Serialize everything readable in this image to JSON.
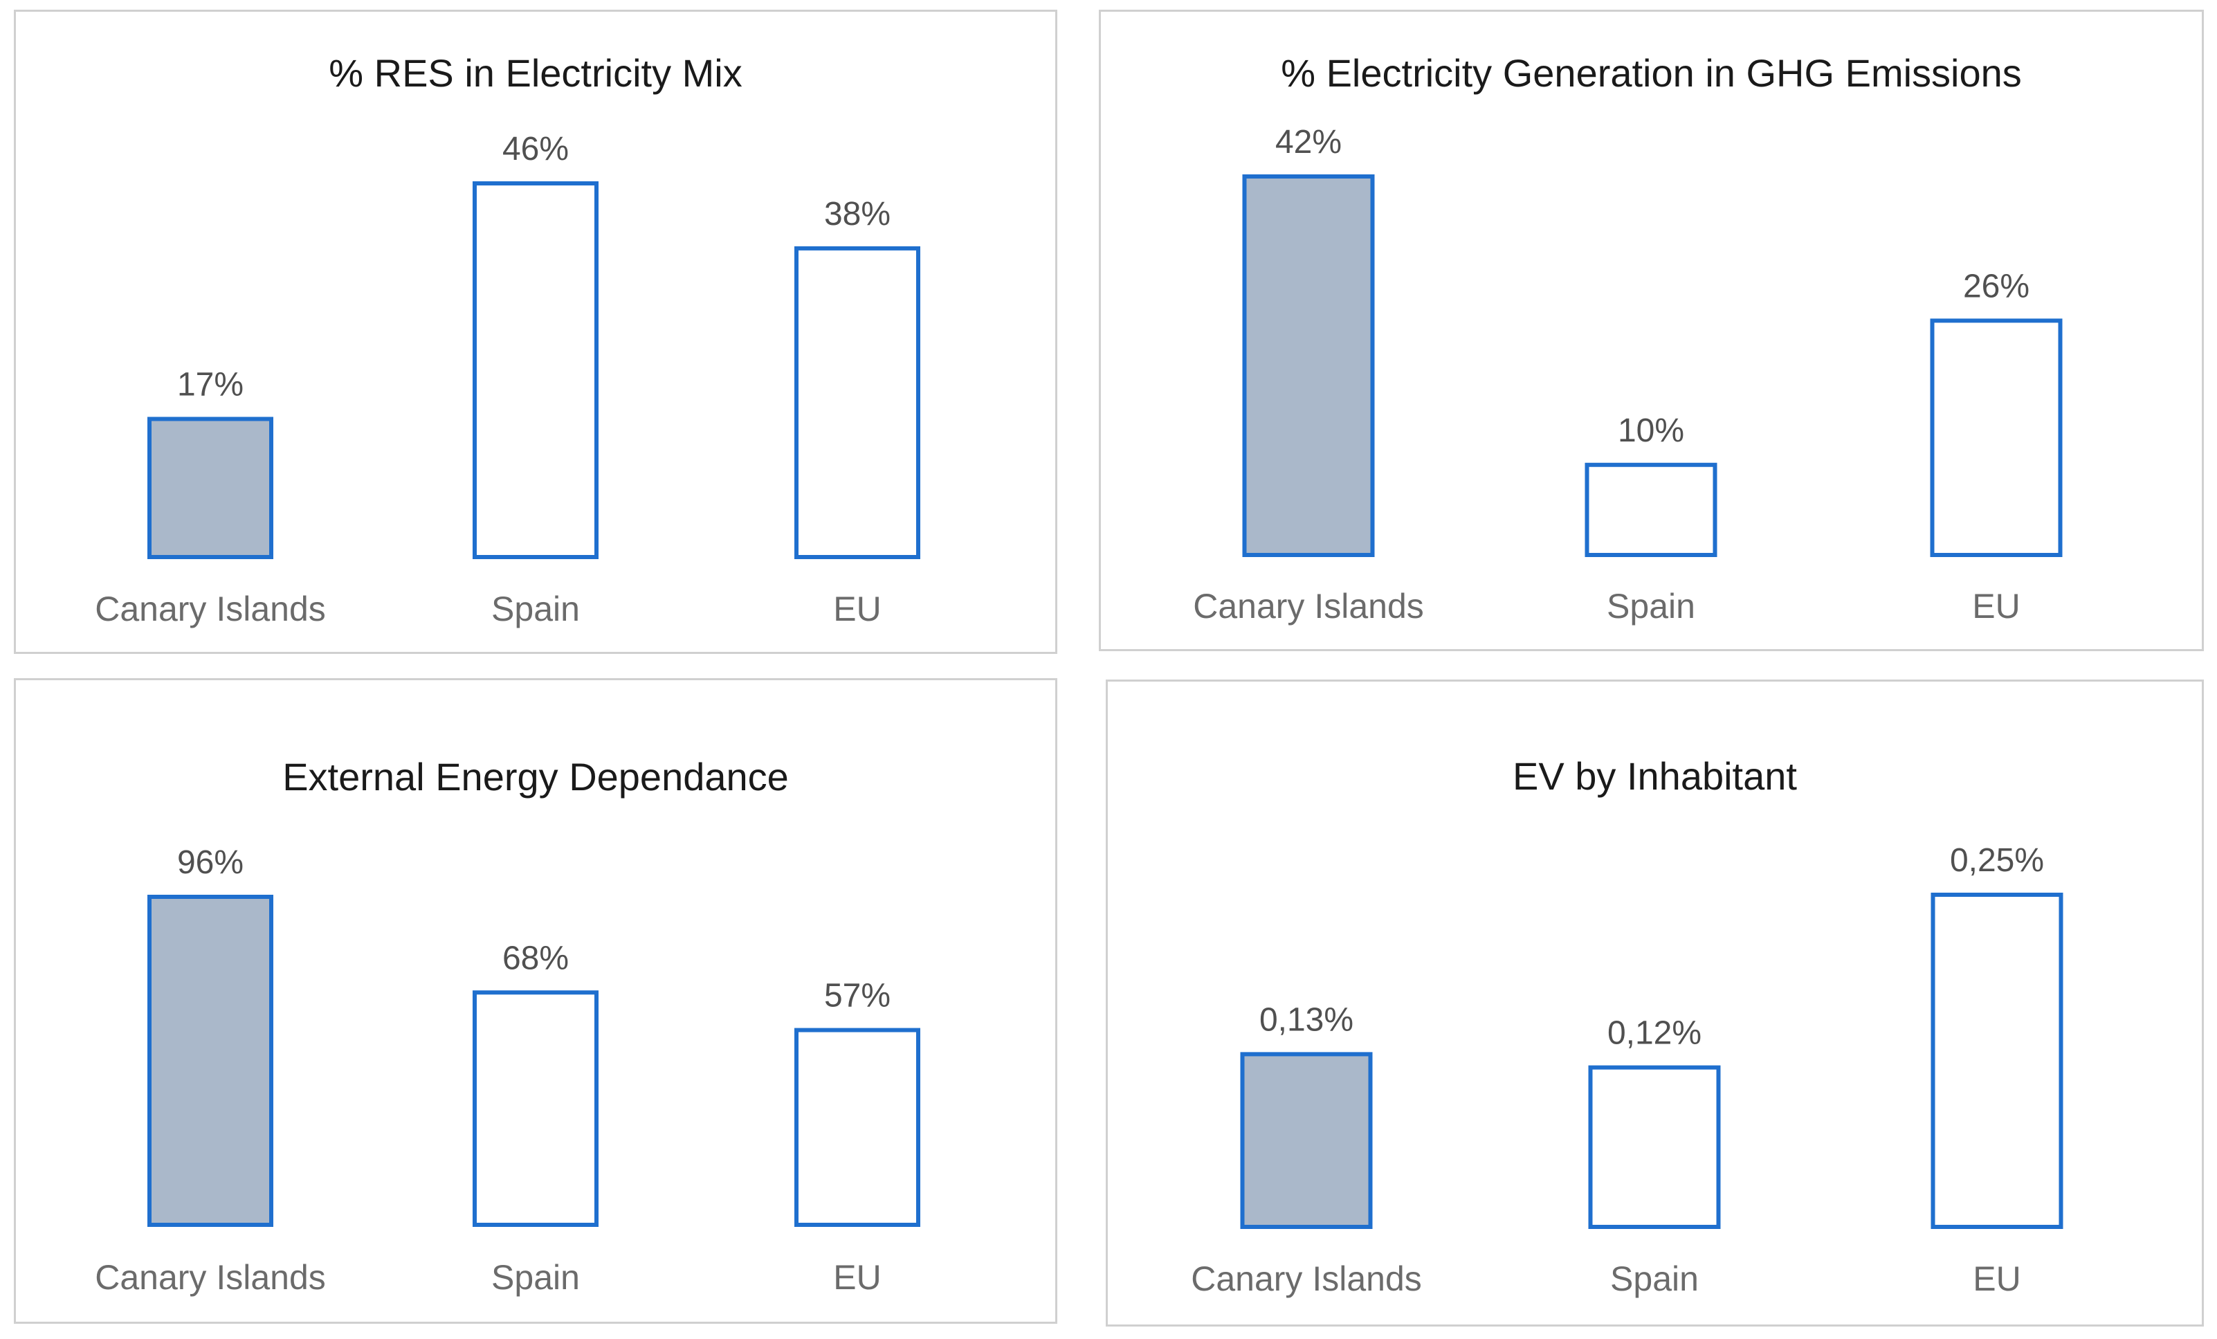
{
  "chart_data": [
    {
      "type": "bar",
      "title": "% RES in Electricity Mix",
      "categories": [
        "Canary Islands",
        "Spain",
        "EU"
      ],
      "values": [
        17,
        46,
        38
      ],
      "value_labels": [
        "17%",
        "46%",
        "38%"
      ],
      "highlight_index": 0,
      "xlabel": "",
      "ylabel": "",
      "ylim": [
        0,
        50
      ],
      "grid": false,
      "legend": "none"
    },
    {
      "type": "bar",
      "title": "% Electricity Generation in GHG Emissions",
      "categories": [
        "Canary Islands",
        "Spain",
        "EU"
      ],
      "values": [
        42,
        10,
        26
      ],
      "value_labels": [
        "42%",
        "10%",
        "26%"
      ],
      "highlight_index": 0,
      "xlabel": "",
      "ylabel": "",
      "ylim": [
        0,
        45
      ],
      "grid": false,
      "legend": "none"
    },
    {
      "type": "bar",
      "title": "External Energy Dependance",
      "categories": [
        "Canary Islands",
        "Spain",
        "EU"
      ],
      "values": [
        96,
        68,
        57
      ],
      "value_labels": [
        "96%",
        "68%",
        "57%"
      ],
      "highlight_index": 0,
      "xlabel": "",
      "ylabel": "",
      "ylim": [
        0,
        100
      ],
      "grid": false,
      "legend": "none"
    },
    {
      "type": "bar",
      "title": "EV by Inhabitant",
      "categories": [
        "Canary Islands",
        "Spain",
        "EU"
      ],
      "values": [
        0.13,
        0.12,
        0.25
      ],
      "value_labels": [
        "0,13%",
        "0,12%",
        "0,25%"
      ],
      "highlight_index": 0,
      "xlabel": "",
      "ylabel": "",
      "ylim": [
        0,
        0.25
      ],
      "grid": false,
      "legend": "none"
    }
  ],
  "colors": {
    "highlight_fill": "#aab8ca",
    "normal_fill": "#ffffff",
    "bar_stroke": "#1f6fce",
    "panel_border": "#d0d0d0"
  }
}
